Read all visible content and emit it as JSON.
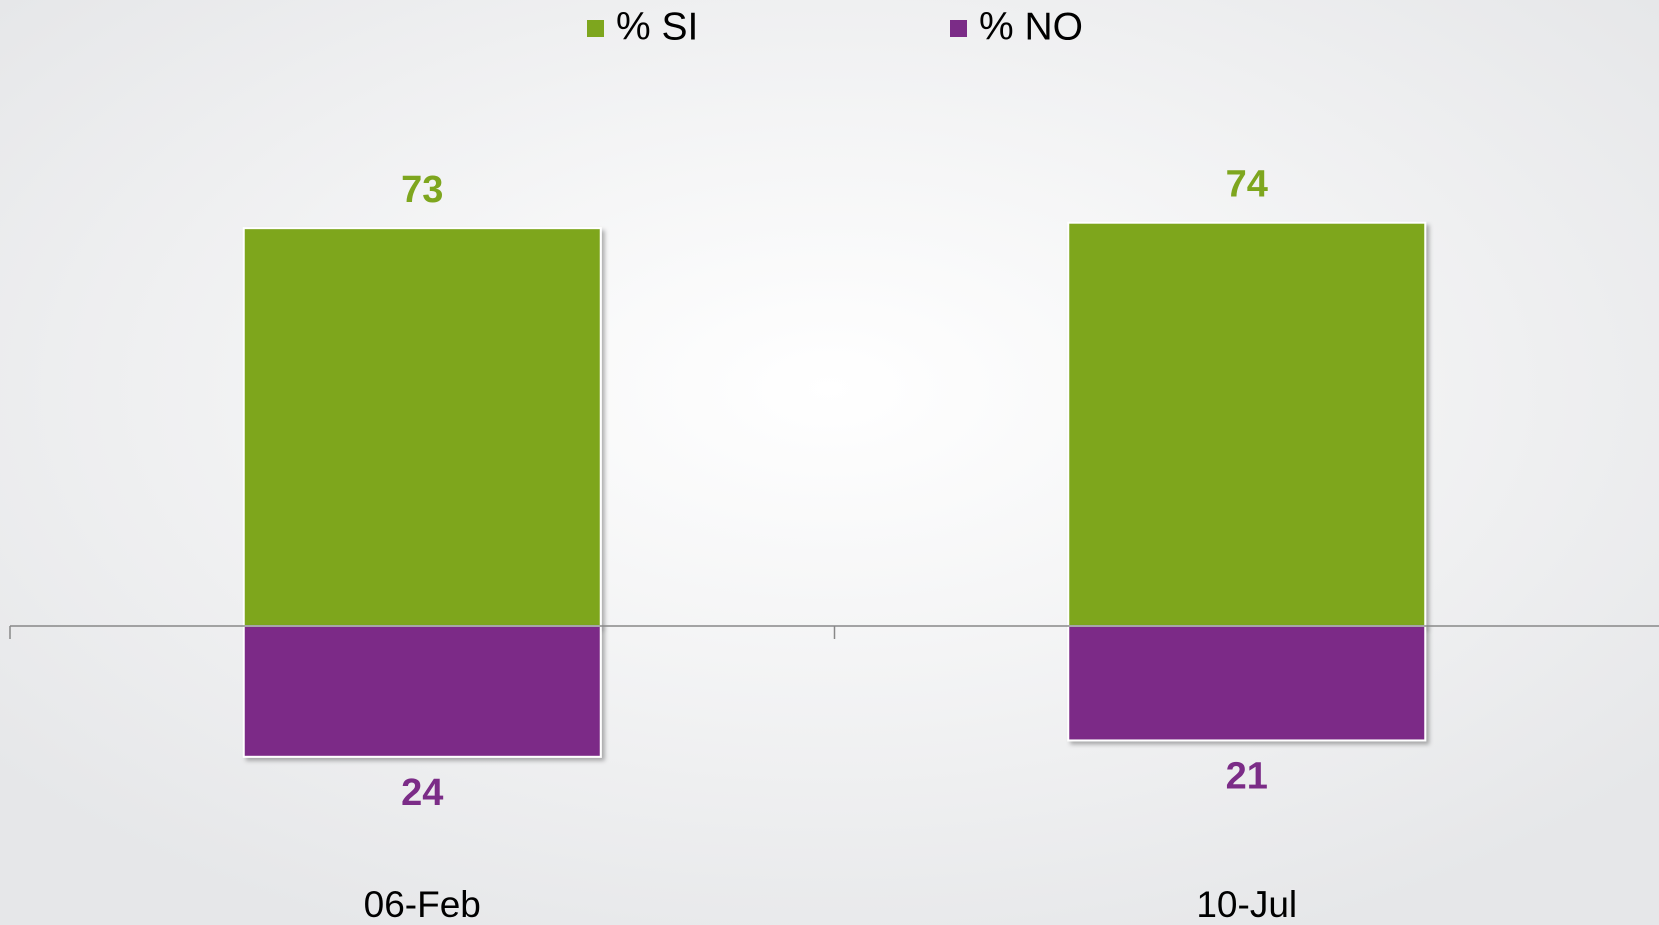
{
  "chart_data": {
    "type": "diverging_bar",
    "categories": [
      "06-Feb",
      "10-Jul"
    ],
    "series": [
      {
        "name": "% SI",
        "color": "#7ea61e",
        "values": [
          73,
          74
        ],
        "direction": "up"
      },
      {
        "name": "% NO",
        "color": "#7b2c87",
        "values": [
          24,
          21
        ],
        "direction": "down"
      }
    ],
    "ylim": [
      -40,
      100
    ],
    "legend": "top"
  }
}
